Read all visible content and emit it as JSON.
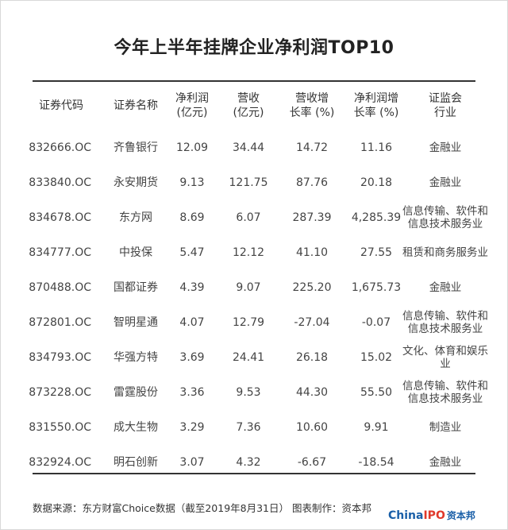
{
  "title": "今年上半年挂牌企业净利润TOP10",
  "headers": {
    "code": "证券代码",
    "name": "证券名称",
    "profit_l1": "净利润",
    "profit_l2": "(亿元)",
    "revenue_l1": "营收",
    "revenue_l2": "(亿元)",
    "rev_growth_l1": "营收增",
    "rev_growth_l2": "长率 (%)",
    "profit_growth_l1": "净利润增",
    "profit_growth_l2": "长率 (%)",
    "industry_l1": "证监会",
    "industry_l2": "行业"
  },
  "rows": [
    {
      "code": "832666.OC",
      "name": "齐鲁银行",
      "profit": "12.09",
      "revenue": "34.44",
      "rev_growth": "14.72",
      "profit_growth": "11.16",
      "industry": "金融业"
    },
    {
      "code": "833840.OC",
      "name": "永安期货",
      "profit": "9.13",
      "revenue": "121.75",
      "rev_growth": "87.76",
      "profit_growth": "20.18",
      "industry": "金融业"
    },
    {
      "code": "834678.OC",
      "name": "东方网",
      "profit": "8.69",
      "revenue": "6.07",
      "rev_growth": "287.39",
      "profit_growth": "4,285.39",
      "industry": "信息传输、软件和信息技术服务业"
    },
    {
      "code": "834777.OC",
      "name": "中投保",
      "profit": "5.47",
      "revenue": "12.12",
      "rev_growth": "41.10",
      "profit_growth": "27.55",
      "industry": "租赁和商务服务业"
    },
    {
      "code": "870488.OC",
      "name": "国都证券",
      "profit": "4.39",
      "revenue": "9.07",
      "rev_growth": "225.20",
      "profit_growth": "1,675.73",
      "industry": "金融业"
    },
    {
      "code": "872801.OC",
      "name": "智明星通",
      "profit": "4.07",
      "revenue": "12.79",
      "rev_growth": "-27.04",
      "profit_growth": "-0.07",
      "industry": "信息传输、软件和信息技术服务业"
    },
    {
      "code": "834793.OC",
      "name": "华强方特",
      "profit": "3.69",
      "revenue": "24.41",
      "rev_growth": "26.18",
      "profit_growth": "15.02",
      "industry": "文化、体育和娱乐业"
    },
    {
      "code": "873228.OC",
      "name": "雷霆股份",
      "profit": "3.36",
      "revenue": "9.53",
      "rev_growth": "44.30",
      "profit_growth": "55.50",
      "industry": "信息传输、软件和信息技术服务业"
    },
    {
      "code": "831550.OC",
      "name": "成大生物",
      "profit": "3.29",
      "revenue": "7.36",
      "rev_growth": "10.60",
      "profit_growth": "9.91",
      "industry": "制造业"
    },
    {
      "code": "832924.OC",
      "name": "明石创新",
      "profit": "3.07",
      "revenue": "4.32",
      "rev_growth": "-6.67",
      "profit_growth": "-18.54",
      "industry": "金融业"
    }
  ],
  "footer": {
    "source": "数据来源：东方财富Choice数据（截至2019年8月31日） 图表制作：资本邦",
    "logo_part1": "China",
    "logo_part2": "IPO",
    "logo_part3": "资本邦"
  }
}
